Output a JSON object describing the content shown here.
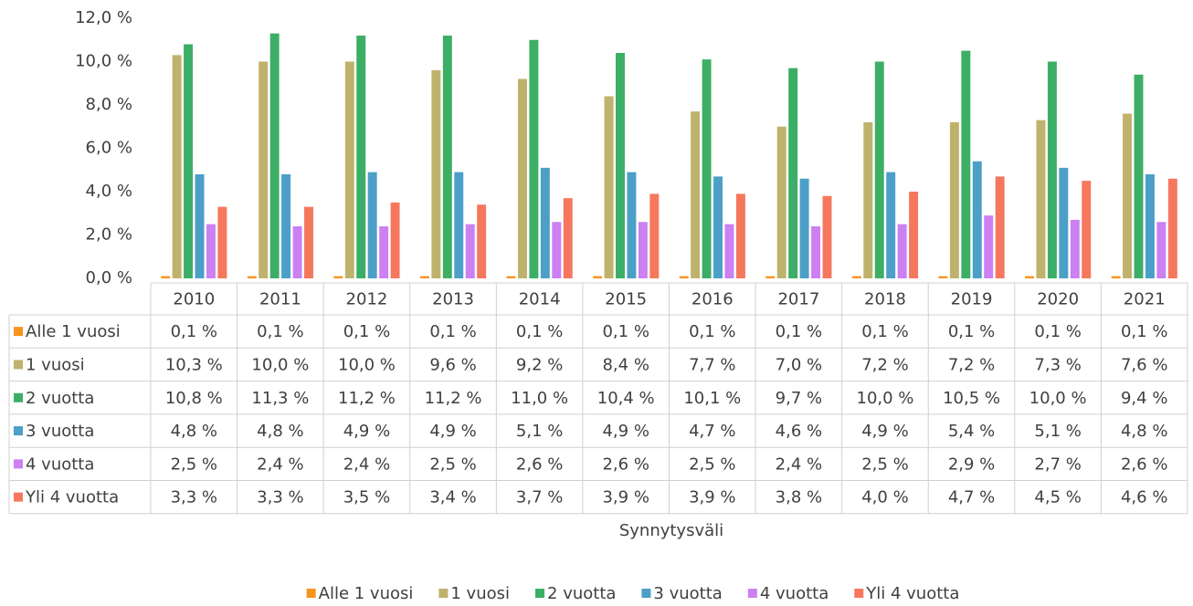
{
  "chart_data": {
    "type": "bar",
    "x_label": "Synnytysväli",
    "categories": [
      "2010",
      "2011",
      "2012",
      "2013",
      "2014",
      "2015",
      "2016",
      "2017",
      "2018",
      "2019",
      "2020",
      "2021"
    ],
    "series": [
      {
        "name": "Alle 1 vuosi",
        "color": "#f7941d",
        "values": [
          0.1,
          0.1,
          0.1,
          0.1,
          0.1,
          0.1,
          0.1,
          0.1,
          0.1,
          0.1,
          0.1,
          0.1
        ],
        "value_labels": [
          "0,1 %",
          "0,1 %",
          "0,1 %",
          "0,1 %",
          "0,1 %",
          "0,1 %",
          "0,1 %",
          "0,1 %",
          "0,1 %",
          "0,1 %",
          "0,1 %",
          "0,1 %"
        ]
      },
      {
        "name": "1 vuosi",
        "color": "#bfb26c",
        "values": [
          10.3,
          10.0,
          10.0,
          9.6,
          9.2,
          8.4,
          7.7,
          7.0,
          7.2,
          7.2,
          7.3,
          7.6
        ],
        "value_labels": [
          "10,3 %",
          "10,0 %",
          "10,0 %",
          "9,6 %",
          "9,2 %",
          "8,4 %",
          "7,7 %",
          "7,0 %",
          "7,2 %",
          "7,2 %",
          "7,3 %",
          "7,6 %"
        ]
      },
      {
        "name": "2 vuotta",
        "color": "#3dae65",
        "values": [
          10.8,
          11.3,
          11.2,
          11.2,
          11.0,
          10.4,
          10.1,
          9.7,
          10.0,
          10.5,
          10.0,
          9.4
        ],
        "value_labels": [
          "10,8 %",
          "11,3 %",
          "11,2 %",
          "11,2 %",
          "11,0 %",
          "10,4 %",
          "10,1 %",
          "9,7 %",
          "10,0 %",
          "10,5 %",
          "10,0 %",
          "9,4 %"
        ]
      },
      {
        "name": "3 vuotta",
        "color": "#4c9fc6",
        "values": [
          4.8,
          4.8,
          4.9,
          4.9,
          5.1,
          4.9,
          4.7,
          4.6,
          4.9,
          5.4,
          5.1,
          4.8
        ],
        "value_labels": [
          "4,8 %",
          "4,8 %",
          "4,9 %",
          "4,9 %",
          "5,1 %",
          "4,9 %",
          "4,7 %",
          "4,6 %",
          "4,9 %",
          "5,4 %",
          "5,1 %",
          "4,8 %"
        ]
      },
      {
        "name": "4 vuotta",
        "color": "#cc80f2",
        "values": [
          2.5,
          2.4,
          2.4,
          2.5,
          2.6,
          2.6,
          2.5,
          2.4,
          2.5,
          2.9,
          2.7,
          2.6
        ],
        "value_labels": [
          "2,5 %",
          "2,4 %",
          "2,4 %",
          "2,5 %",
          "2,6 %",
          "2,6 %",
          "2,5 %",
          "2,4 %",
          "2,5 %",
          "2,9 %",
          "2,7 %",
          "2,6 %"
        ]
      },
      {
        "name": "Yli 4 vuotta",
        "color": "#f5785e",
        "values": [
          3.3,
          3.3,
          3.5,
          3.4,
          3.7,
          3.9,
          3.9,
          3.8,
          4.0,
          4.7,
          4.5,
          4.6
        ],
        "value_labels": [
          "3,3 %",
          "3,3 %",
          "3,5 %",
          "3,4 %",
          "3,7 %",
          "3,9 %",
          "3,9 %",
          "3,8 %",
          "4,0 %",
          "4,7 %",
          "4,5 %",
          "4,6 %"
        ]
      }
    ],
    "ylim": [
      0,
      12
    ],
    "yticks": [
      {
        "value": 0,
        "label": "0,0 %"
      },
      {
        "value": 2,
        "label": "2,0 %"
      },
      {
        "value": 4,
        "label": "4,0 %"
      },
      {
        "value": 6,
        "label": "6,0 %"
      },
      {
        "value": 8,
        "label": "8,0 %"
      },
      {
        "value": 10,
        "label": "10,0 %"
      },
      {
        "value": 12,
        "label": "12,0 %"
      }
    ],
    "grid": false
  }
}
